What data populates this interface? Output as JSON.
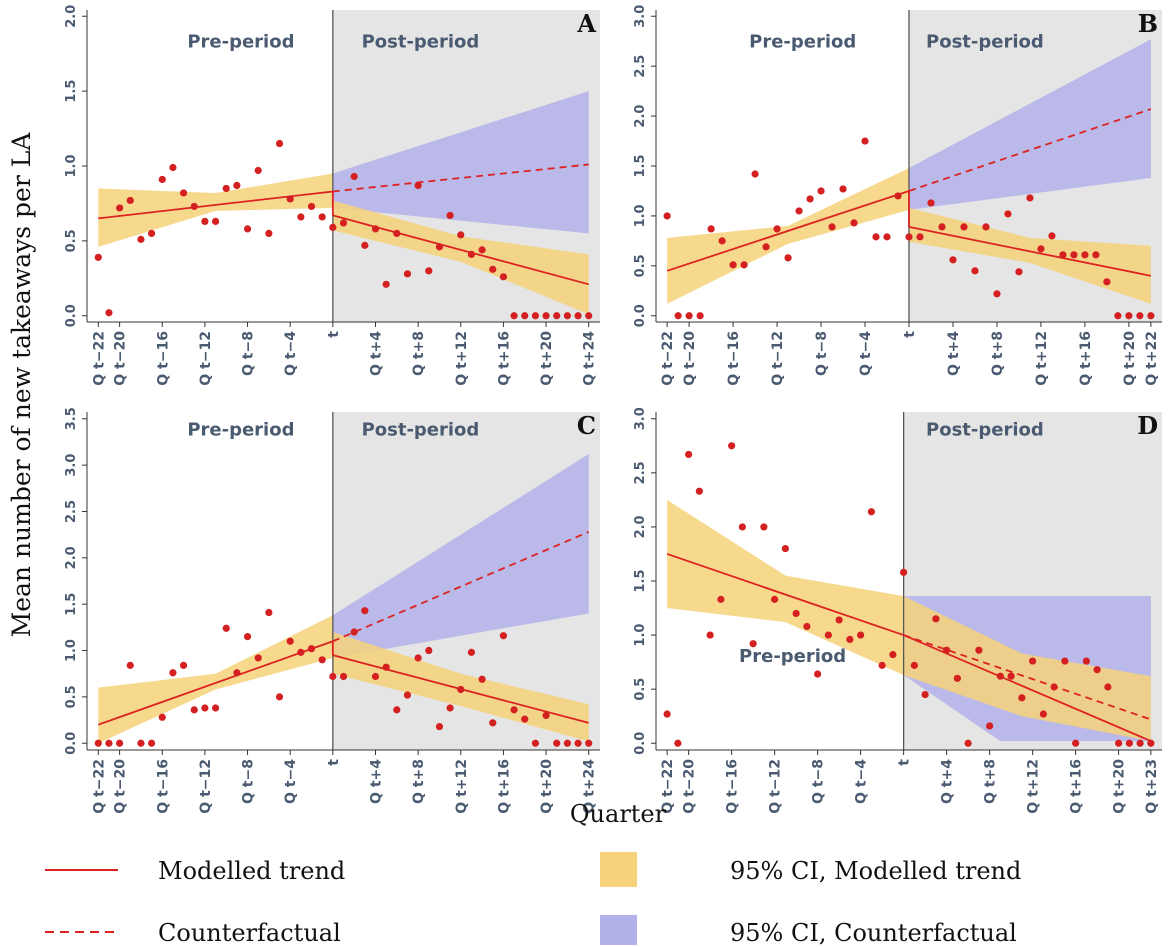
{
  "y_axis_label": "Mean number of new takeaways per LA",
  "x_axis_label": "Quarter",
  "legend": {
    "modelled_trend": "Modelled trend",
    "counterfactual": "Counterfactual",
    "ci_modelled": "95% CI, Modelled trend",
    "ci_counterfactual": "95% CI, Counterfactual"
  },
  "colors": {
    "line": "#dd2222",
    "point": "#d42020",
    "ci_modelled": "#f6d27a",
    "ci_counterfactual": "#b3b1ea",
    "post_bg": "#e5e5e5",
    "period_label": "#4a5a70"
  },
  "chart_data": [
    {
      "panel": "A",
      "type": "scatter",
      "pre_label": "Pre-period",
      "post_label": "Post-period",
      "x_range": [
        -22,
        24
      ],
      "ylim": [
        0,
        2
      ],
      "y_ticks": [
        "0.0",
        "0.5",
        "1.0",
        "1.5",
        "2.0"
      ],
      "x_ticks": [
        {
          "x": -22,
          "label": "Q t−22"
        },
        {
          "x": -20,
          "label": "Q t−20"
        },
        {
          "x": -16,
          "label": "Q t−16"
        },
        {
          "x": -12,
          "label": "Q t−12"
        },
        {
          "x": -8,
          "label": "Q t−8"
        },
        {
          "x": -4,
          "label": "Q t−4"
        },
        {
          "x": 0,
          "label": "t"
        },
        {
          "x": 4,
          "label": "Q t+4"
        },
        {
          "x": 8,
          "label": "Q t+8"
        },
        {
          "x": 12,
          "label": "Q t+12"
        },
        {
          "x": 16,
          "label": "Q t+16"
        },
        {
          "x": 20,
          "label": "Q t+20"
        },
        {
          "x": 24,
          "label": "Q t+24"
        }
      ],
      "points": {
        "x": [
          -22,
          -21,
          -20,
          -19,
          -18,
          -17,
          -16,
          -15,
          -14,
          -13,
          -12,
          -11,
          -10,
          -9,
          -8,
          -7,
          -6,
          -5,
          -4,
          -3,
          -2,
          -1,
          0,
          1,
          2,
          3,
          4,
          5,
          6,
          7,
          8,
          9,
          10,
          11,
          12,
          13,
          14,
          15,
          16,
          17,
          18,
          19,
          20,
          21,
          22,
          23,
          24
        ],
        "y": [
          0.39,
          0.02,
          0.72,
          0.77,
          0.51,
          0.55,
          0.91,
          0.99,
          0.82,
          0.73,
          0.63,
          0.63,
          0.85,
          0.87,
          0.58,
          0.97,
          0.55,
          1.15,
          0.78,
          0.66,
          0.73,
          0.66,
          0.59,
          0.62,
          0.93,
          0.47,
          0.58,
          0.21,
          0.55,
          0.28,
          0.87,
          0.3,
          0.46,
          0.67,
          0.54,
          0.41,
          0.44,
          0.31,
          0.26,
          0,
          0,
          0,
          0,
          0,
          0,
          0,
          0
        ]
      },
      "trend_pre": [
        [
          -22,
          0.65
        ],
        [
          0,
          0.83
        ]
      ],
      "trend_post": [
        [
          0,
          0.67
        ],
        [
          24,
          0.21
        ]
      ],
      "counterfactual": [
        [
          0,
          0.83
        ],
        [
          24,
          1.01
        ]
      ],
      "ci_pre": {
        "x": [
          -22,
          -11,
          0
        ],
        "lo": [
          0.46,
          0.7,
          0.72
        ],
        "hi": [
          0.85,
          0.82,
          0.95
        ]
      },
      "ci_post": {
        "x": [
          0,
          12,
          24
        ],
        "lo": [
          0.57,
          0.36,
          0.01
        ],
        "hi": [
          0.77,
          0.53,
          0.41
        ]
      },
      "ci_cf": {
        "x": [
          0,
          24
        ],
        "lo": [
          0.72,
          0.55
        ],
        "hi": [
          0.95,
          1.5
        ]
      }
    },
    {
      "panel": "B",
      "type": "scatter",
      "pre_label": "Pre-period",
      "post_label": "Post-period",
      "x_range": [
        -22,
        22
      ],
      "ylim": [
        0,
        3
      ],
      "y_ticks": [
        "0.0",
        "0.5",
        "1.0",
        "1.5",
        "2.0",
        "2.5",
        "3.0"
      ],
      "x_ticks": [
        {
          "x": -22,
          "label": "Q t−22"
        },
        {
          "x": -20,
          "label": "Q t−20"
        },
        {
          "x": -16,
          "label": "Q t−16"
        },
        {
          "x": -12,
          "label": "Q t−12"
        },
        {
          "x": -8,
          "label": "Q t−8"
        },
        {
          "x": -4,
          "label": "Q t−4"
        },
        {
          "x": 0,
          "label": "t"
        },
        {
          "x": 4,
          "label": "Q t+4"
        },
        {
          "x": 8,
          "label": "Q t+8"
        },
        {
          "x": 12,
          "label": "Q t+12"
        },
        {
          "x": 16,
          "label": "Q t+16"
        },
        {
          "x": 20,
          "label": "Q t+20"
        },
        {
          "x": 22,
          "label": "Q t+22"
        }
      ],
      "points": {
        "x": [
          -22,
          -21,
          -20,
          -19,
          -18,
          -17,
          -16,
          -15,
          -14,
          -13,
          -12,
          -11,
          -10,
          -9,
          -8,
          -7,
          -6,
          -5,
          -4,
          -3,
          -2,
          -1,
          0,
          1,
          2,
          3,
          4,
          5,
          6,
          7,
          8,
          9,
          10,
          11,
          12,
          13,
          14,
          15,
          16,
          17,
          18,
          19,
          20,
          21,
          22
        ],
        "y": [
          1.0,
          0,
          0,
          0,
          0.87,
          0.75,
          0.51,
          0.51,
          1.42,
          0.69,
          0.87,
          0.58,
          1.05,
          1.17,
          1.25,
          0.89,
          1.27,
          0.93,
          1.75,
          0.79,
          0.79,
          1.2,
          0.79,
          0.79,
          1.13,
          0.89,
          0.56,
          0.89,
          0.45,
          0.89,
          0.22,
          1.02,
          0.44,
          1.18,
          0.67,
          0.8,
          0.61,
          0.61,
          0.61,
          0.61,
          0.34,
          0,
          0,
          0,
          0
        ]
      },
      "trend_pre": [
        [
          -22,
          0.45
        ],
        [
          0,
          1.25
        ]
      ],
      "trend_post": [
        [
          0,
          0.89
        ],
        [
          22,
          0.4
        ]
      ],
      "counterfactual": [
        [
          0,
          1.25
        ],
        [
          22,
          2.07
        ]
      ],
      "ci_pre": {
        "x": [
          -22,
          -11,
          0
        ],
        "lo": [
          0.12,
          0.72,
          1.06
        ],
        "hi": [
          0.78,
          0.9,
          1.48
        ]
      },
      "ci_post": {
        "x": [
          0,
          11,
          22
        ],
        "lo": [
          0.74,
          0.53,
          0.12
        ],
        "hi": [
          1.08,
          0.78,
          0.7
        ]
      },
      "ci_cf": {
        "x": [
          0,
          22
        ],
        "lo": [
          1.06,
          1.38
        ],
        "hi": [
          1.48,
          2.77
        ]
      }
    },
    {
      "panel": "C",
      "type": "scatter",
      "pre_label": "Pre-period",
      "post_label": "Post-period",
      "x_range": [
        -22,
        24
      ],
      "ylim": [
        0,
        3.5
      ],
      "y_ticks": [
        "0.0",
        "0.5",
        "1.0",
        "1.5",
        "2.0",
        "2.5",
        "3.0",
        "3.5"
      ],
      "x_ticks": [
        {
          "x": -22,
          "label": "Q t−22"
        },
        {
          "x": -20,
          "label": "Q t−20"
        },
        {
          "x": -16,
          "label": "Q t−16"
        },
        {
          "x": -12,
          "label": "Q t−12"
        },
        {
          "x": -8,
          "label": "Q t−8"
        },
        {
          "x": -4,
          "label": "Q t−4"
        },
        {
          "x": 0,
          "label": "t"
        },
        {
          "x": 4,
          "label": "Q t+4"
        },
        {
          "x": 8,
          "label": "Q t+8"
        },
        {
          "x": 12,
          "label": "Q t+12"
        },
        {
          "x": 16,
          "label": "Q t+16"
        },
        {
          "x": 20,
          "label": "Q t+20"
        },
        {
          "x": 24,
          "label": "Q t+24"
        }
      ],
      "points": {
        "x": [
          -22,
          -21,
          -20,
          -19,
          -18,
          -17,
          -16,
          -15,
          -14,
          -13,
          -12,
          -11,
          -10,
          -9,
          -8,
          -7,
          -6,
          -5,
          -4,
          -3,
          -2,
          -1,
          0,
          1,
          2,
          3,
          4,
          5,
          6,
          7,
          8,
          9,
          10,
          11,
          12,
          13,
          14,
          15,
          16,
          17,
          18,
          19,
          20,
          21,
          22,
          23,
          24
        ],
        "y": [
          0,
          0,
          0,
          0.84,
          0,
          0,
          0.28,
          0.76,
          0.84,
          0.36,
          0.38,
          0.38,
          1.24,
          0.76,
          1.15,
          0.92,
          1.41,
          0.5,
          1.1,
          0.98,
          1.02,
          0.9,
          0.72,
          0.72,
          1.2,
          1.43,
          0.72,
          0.82,
          0.36,
          0.52,
          0.92,
          1.0,
          0.18,
          0.38,
          0.58,
          0.98,
          0.69,
          0.22,
          1.16,
          0.36,
          0.26,
          0,
          0.3,
          0,
          0,
          0,
          0
        ]
      },
      "trend_pre": [
        [
          -22,
          0.2
        ],
        [
          0,
          1.1
        ]
      ],
      "trend_post": [
        [
          0,
          0.95
        ],
        [
          24,
          0.22
        ]
      ],
      "counterfactual": [
        [
          0,
          1.1
        ],
        [
          24,
          2.28
        ]
      ],
      "ci_pre": {
        "x": [
          -22,
          -11,
          0
        ],
        "lo": [
          0,
          0.58,
          0.92
        ],
        "hi": [
          0.6,
          0.75,
          1.38
        ]
      },
      "ci_post": {
        "x": [
          0,
          12,
          24
        ],
        "lo": [
          0.75,
          0.4,
          0.02
        ],
        "hi": [
          1.2,
          0.75,
          0.42
        ]
      },
      "ci_cf": {
        "x": [
          0,
          24
        ],
        "lo": [
          0.92,
          1.4
        ],
        "hi": [
          1.38,
          3.12
        ]
      }
    },
    {
      "panel": "D",
      "type": "scatter",
      "pre_label": "Pre-period",
      "post_label": "Post-period",
      "x_range": [
        -22,
        23
      ],
      "ylim": [
        0,
        3
      ],
      "y_ticks": [
        "0.0",
        "0.5",
        "1.0",
        "1.5",
        "2.0",
        "2.5",
        "3.0"
      ],
      "x_ticks": [
        {
          "x": -22,
          "label": "Q t−22"
        },
        {
          "x": -20,
          "label": "Q t−20"
        },
        {
          "x": -16,
          "label": "Q t−16"
        },
        {
          "x": -12,
          "label": "Q t−12"
        },
        {
          "x": -8,
          "label": "Q t−8"
        },
        {
          "x": -4,
          "label": "Q t−4"
        },
        {
          "x": 0,
          "label": "t"
        },
        {
          "x": 4,
          "label": "Q t+4"
        },
        {
          "x": 8,
          "label": "Q t+8"
        },
        {
          "x": 12,
          "label": "Q t+12"
        },
        {
          "x": 16,
          "label": "Q t+16"
        },
        {
          "x": 20,
          "label": "Q t+20"
        },
        {
          "x": 23,
          "label": "Q t+23"
        }
      ],
      "points": {
        "x": [
          -22,
          -21,
          -20,
          -19,
          -18,
          -17,
          -16,
          -15,
          -14,
          -13,
          -12,
          -11,
          -10,
          -9,
          -8,
          -7,
          -6,
          -5,
          -4,
          -3,
          -2,
          -1,
          0,
          1,
          2,
          3,
          4,
          5,
          6,
          7,
          8,
          9,
          10,
          11,
          12,
          13,
          14,
          15,
          16,
          17,
          18,
          19,
          20,
          21,
          22,
          23
        ],
        "y": [
          0.27,
          0,
          2.67,
          2.33,
          1.0,
          1.33,
          2.75,
          2.0,
          0.92,
          2.0,
          1.33,
          1.8,
          1.2,
          1.08,
          0.64,
          1.0,
          1.14,
          0.96,
          1.0,
          2.14,
          0.72,
          0.82,
          1.58,
          0.72,
          0.45,
          1.15,
          0.86,
          0.6,
          0,
          0.86,
          0.16,
          0.62,
          0.62,
          0.42,
          0.76,
          0.27,
          0.52,
          0.76,
          0,
          0.76,
          0.68,
          0.52,
          0,
          0,
          0,
          0
        ]
      },
      "trend_pre": [
        [
          -22,
          1.75
        ],
        [
          0,
          1.0
        ]
      ],
      "trend_post": [
        [
          0,
          1.0
        ],
        [
          23,
          0.02
        ]
      ],
      "counterfactual": [
        [
          0,
          1.0
        ],
        [
          23,
          0.22
        ]
      ],
      "ci_pre": {
        "x": [
          -22,
          -11,
          0
        ],
        "lo": [
          1.25,
          1.12,
          0.63
        ],
        "hi": [
          2.25,
          1.55,
          1.36
        ]
      },
      "ci_post": {
        "x": [
          0,
          11,
          23
        ],
        "lo": [
          0.63,
          0.25,
          0.02
        ],
        "hi": [
          1.36,
          0.83,
          0.62
        ]
      },
      "ci_cf": {
        "x": [
          0,
          9,
          23
        ],
        "lo": [
          0.63,
          0.02,
          0.02
        ],
        "hi": [
          1.36,
          1.36,
          1.36
        ]
      }
    }
  ]
}
